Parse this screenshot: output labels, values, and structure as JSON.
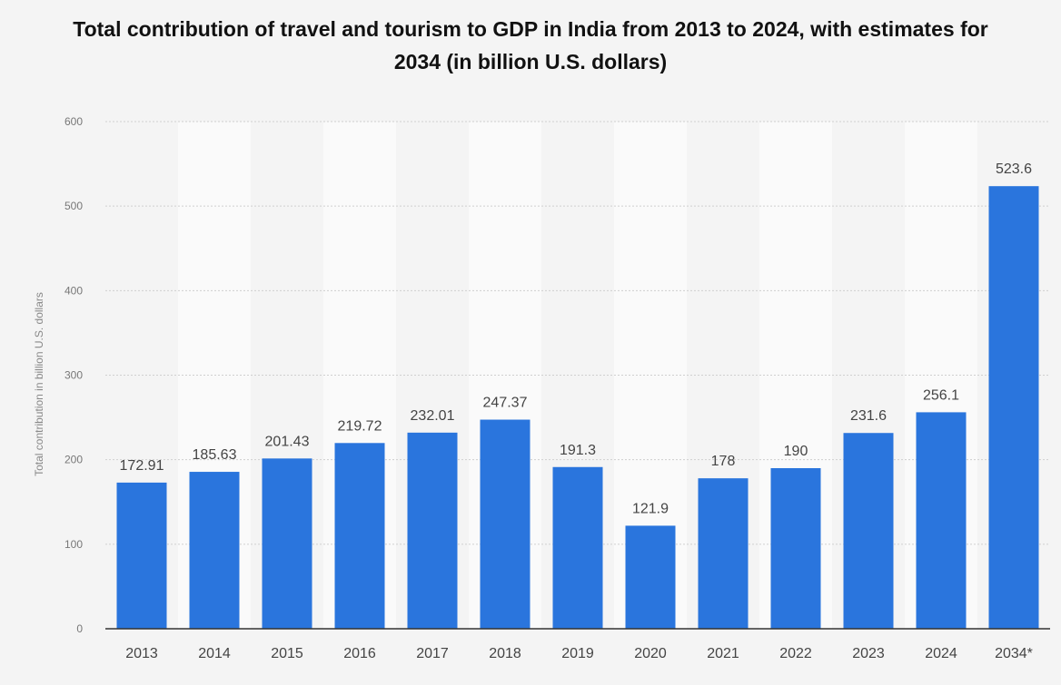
{
  "title": "Total contribution of travel and tourism to GDP in India from 2013 to 2024, with estimates for 2034 (in billion U.S. dollars)",
  "colors": {
    "bar": "#2a75dd",
    "background": "#f4f4f4",
    "band": "#fafafa",
    "grid": "#cfcfcf",
    "axis": "#333333"
  },
  "chart_data": {
    "type": "bar",
    "title": "Total contribution of travel and tourism to GDP in India from 2013 to 2024, with estimates for 2034 (in billion U.S. dollars)",
    "xlabel": "",
    "ylabel": "Total contribution in billion U.S. dollars",
    "categories": [
      "2013",
      "2014",
      "2015",
      "2016",
      "2017",
      "2018",
      "2019",
      "2020",
      "2021",
      "2022",
      "2023",
      "2024",
      "2034*"
    ],
    "values": [
      172.91,
      185.63,
      201.43,
      219.72,
      232.01,
      247.37,
      191.3,
      121.9,
      178,
      190,
      231.6,
      256.1,
      523.6
    ],
    "value_labels": [
      "172.91",
      "185.63",
      "201.43",
      "219.72",
      "232.01",
      "247.37",
      "191.3",
      "121.9",
      "178",
      "190",
      "231.6",
      "256.1",
      "523.6"
    ],
    "ylim": [
      0,
      600
    ],
    "yticks": [
      0,
      100,
      200,
      300,
      400,
      500,
      600
    ],
    "ytick_labels": [
      "0",
      "100",
      "200",
      "300",
      "400",
      "500",
      "600"
    ],
    "grid": true,
    "legend": "none"
  }
}
